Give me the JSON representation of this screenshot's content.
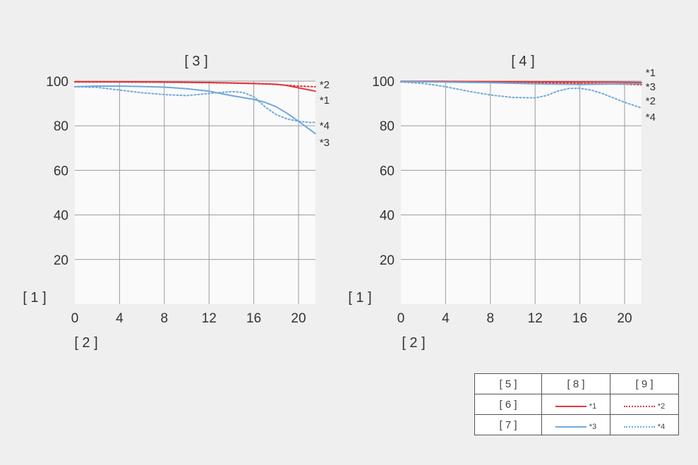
{
  "chart_data": [
    {
      "type": "line",
      "title": "[ 3 ]",
      "xlabel": "[ 2 ]",
      "ylabel": "[ 1 ]",
      "xlim": [
        0,
        21.5
      ],
      "ylim": [
        0,
        100
      ],
      "xticks": [
        0,
        4,
        8,
        12,
        16,
        20
      ],
      "yticks": [
        20,
        40,
        60,
        80,
        100
      ],
      "grid": true,
      "series": [
        {
          "name": "*1",
          "color": "#e0373d",
          "style": "solid",
          "x": [
            0,
            4,
            8,
            12,
            16,
            18,
            19,
            20,
            21.5
          ],
          "y": [
            99.7,
            99.7,
            99.6,
            99.4,
            99.0,
            98.6,
            98.0,
            97.0,
            95.5
          ]
        },
        {
          "name": "*2",
          "color": "#e0373d",
          "style": "dotted",
          "x": [
            0,
            4,
            8,
            12,
            16,
            18,
            20,
            21.5
          ],
          "y": [
            99.6,
            99.6,
            99.5,
            99.3,
            98.9,
            98.5,
            97.8,
            97.5
          ]
        },
        {
          "name": "*3",
          "color": "#6fa8dc",
          "style": "solid",
          "x": [
            0,
            2,
            4,
            6,
            8,
            10,
            12,
            14,
            16,
            17,
            18,
            19,
            20,
            21.5
          ],
          "y": [
            97.5,
            97.8,
            97.8,
            97.6,
            97.3,
            96.6,
            95.5,
            93.5,
            91.8,
            90.5,
            88.5,
            85.5,
            82.0,
            76.5
          ]
        },
        {
          "name": "*4",
          "color": "#6fa8dc",
          "style": "dotted",
          "x": [
            0,
            2,
            4,
            6,
            8,
            10,
            12,
            14,
            15,
            16,
            17,
            18,
            19,
            20,
            21,
            21.5
          ],
          "y": [
            97.5,
            97.2,
            96.0,
            94.8,
            94.0,
            93.5,
            94.5,
            95.3,
            95.0,
            93.0,
            88.5,
            85.0,
            83.0,
            82.0,
            81.5,
            81.5
          ]
        }
      ],
      "series_labels": [
        "*2",
        "*1",
        "*4",
        "*3"
      ]
    },
    {
      "type": "line",
      "title": "[ 4 ]",
      "xlabel": "[ 2 ]",
      "ylabel": "[ 1 ]",
      "xlim": [
        0,
        21.5
      ],
      "ylim": [
        0,
        100
      ],
      "xticks": [
        0,
        4,
        8,
        12,
        16,
        20
      ],
      "yticks": [
        20,
        40,
        60,
        80,
        100
      ],
      "grid": true,
      "series": [
        {
          "name": "*1",
          "color": "#e0373d",
          "style": "solid",
          "x": [
            0,
            4,
            8,
            12,
            16,
            20,
            21.5
          ],
          "y": [
            99.9,
            99.9,
            99.8,
            99.7,
            99.6,
            99.5,
            99.4
          ]
        },
        {
          "name": "*2",
          "color": "#e0373d",
          "style": "dotted",
          "x": [
            0,
            4,
            8,
            12,
            16,
            20,
            21.5
          ],
          "y": [
            99.8,
            99.7,
            99.5,
            99.3,
            99.0,
            98.6,
            98.4
          ]
        },
        {
          "name": "*3",
          "color": "#6fa8dc",
          "style": "solid",
          "x": [
            0,
            4,
            8,
            12,
            16,
            20,
            21.5
          ],
          "y": [
            99.8,
            99.6,
            99.3,
            98.8,
            98.5,
            98.8,
            98.9
          ]
        },
        {
          "name": "*4",
          "color": "#6fa8dc",
          "style": "dotted",
          "x": [
            0,
            2,
            4,
            6,
            8,
            10,
            12,
            13,
            14,
            15,
            16,
            17,
            18,
            19,
            20,
            21.5
          ],
          "y": [
            99.6,
            99.0,
            97.5,
            95.5,
            93.8,
            92.7,
            92.5,
            93.5,
            95.5,
            96.7,
            96.8,
            96.0,
            94.5,
            92.5,
            90.5,
            88.0
          ]
        }
      ],
      "series_labels": [
        "*1",
        "*3",
        "*2",
        "*4"
      ]
    }
  ],
  "legend": {
    "header": [
      "[ 5 ]",
      "[ 8 ]",
      "[ 9 ]"
    ],
    "rows": [
      {
        "label": "[ 6 ]",
        "solid_mark": "*1",
        "solid_color": "#e0373d",
        "dotted_mark": "*2",
        "dotted_color": "#e0373d"
      },
      {
        "label": "[ 7 ]",
        "solid_mark": "*3",
        "solid_color": "#6fa8dc",
        "dotted_mark": "*4",
        "dotted_color": "#6fa8dc"
      }
    ]
  }
}
